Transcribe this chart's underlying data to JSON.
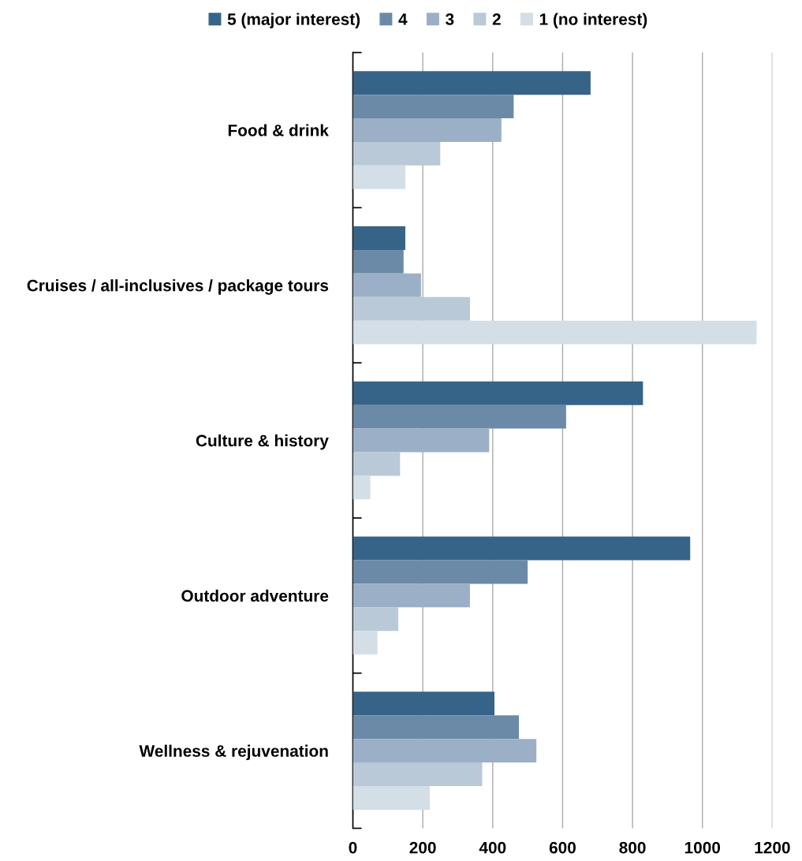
{
  "chart_data": {
    "type": "bar",
    "orientation": "horizontal",
    "categories": [
      "Food & drink",
      "Cruises / all-inclusives / package tours",
      "Culture & history",
      "Outdoor adventure",
      "Wellness & rejuvenation"
    ],
    "series": [
      {
        "name": "5 (major interest)",
        "color": "#366489",
        "values": [
          680,
          150,
          830,
          965,
          405
        ]
      },
      {
        "name": "4",
        "color": "#6a8aa7",
        "values": [
          460,
          145,
          610,
          500,
          475
        ]
      },
      {
        "name": "3",
        "color": "#9bb0c6",
        "values": [
          425,
          195,
          390,
          335,
          525
        ]
      },
      {
        "name": "2",
        "color": "#b9c9d8",
        "values": [
          250,
          335,
          135,
          130,
          370
        ]
      },
      {
        "name": "1 (no interest)",
        "color": "#d3dee7",
        "values": [
          150,
          1155,
          50,
          70,
          220
        ]
      }
    ],
    "xlim": [
      0,
      1200
    ],
    "xticks": [
      0,
      200,
      400,
      600,
      800,
      1000,
      1200
    ],
    "grid": "x",
    "legend": "top"
  }
}
